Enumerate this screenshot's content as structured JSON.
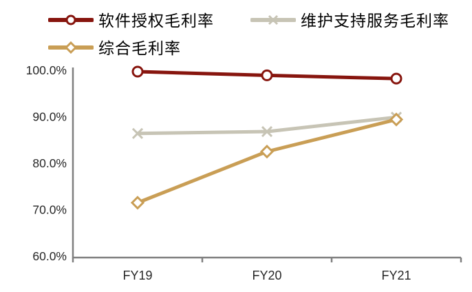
{
  "chart_data": {
    "type": "line",
    "categories": [
      "FY19",
      "FY20",
      "FY21"
    ],
    "series": [
      {
        "name": "软件授权毛利率",
        "values": [
          99.7,
          98.9,
          98.2
        ],
        "color": "#87150E",
        "marker": "circle"
      },
      {
        "name": "维护支持服务毛利率",
        "values": [
          86.4,
          86.8,
          89.9
        ],
        "color": "#C7C4B5",
        "marker": "x"
      },
      {
        "name": "综合毛利率",
        "values": [
          71.5,
          82.5,
          89.4
        ],
        "color": "#C99E55",
        "marker": "diamond"
      }
    ],
    "ylim": [
      60,
      100
    ],
    "ytick_values": [
      100,
      90,
      80,
      70,
      60
    ],
    "ytick_labels": [
      "100.0%",
      "90.0%",
      "80.0%",
      "70.0%",
      "60.0%"
    ],
    "xlabel": "",
    "ylabel": "",
    "title": "",
    "grid": false,
    "legend_position": "top-left",
    "axis_color": "#7F7F7F",
    "text_color": "#262626",
    "marker_fill": "#FFFFFF"
  }
}
